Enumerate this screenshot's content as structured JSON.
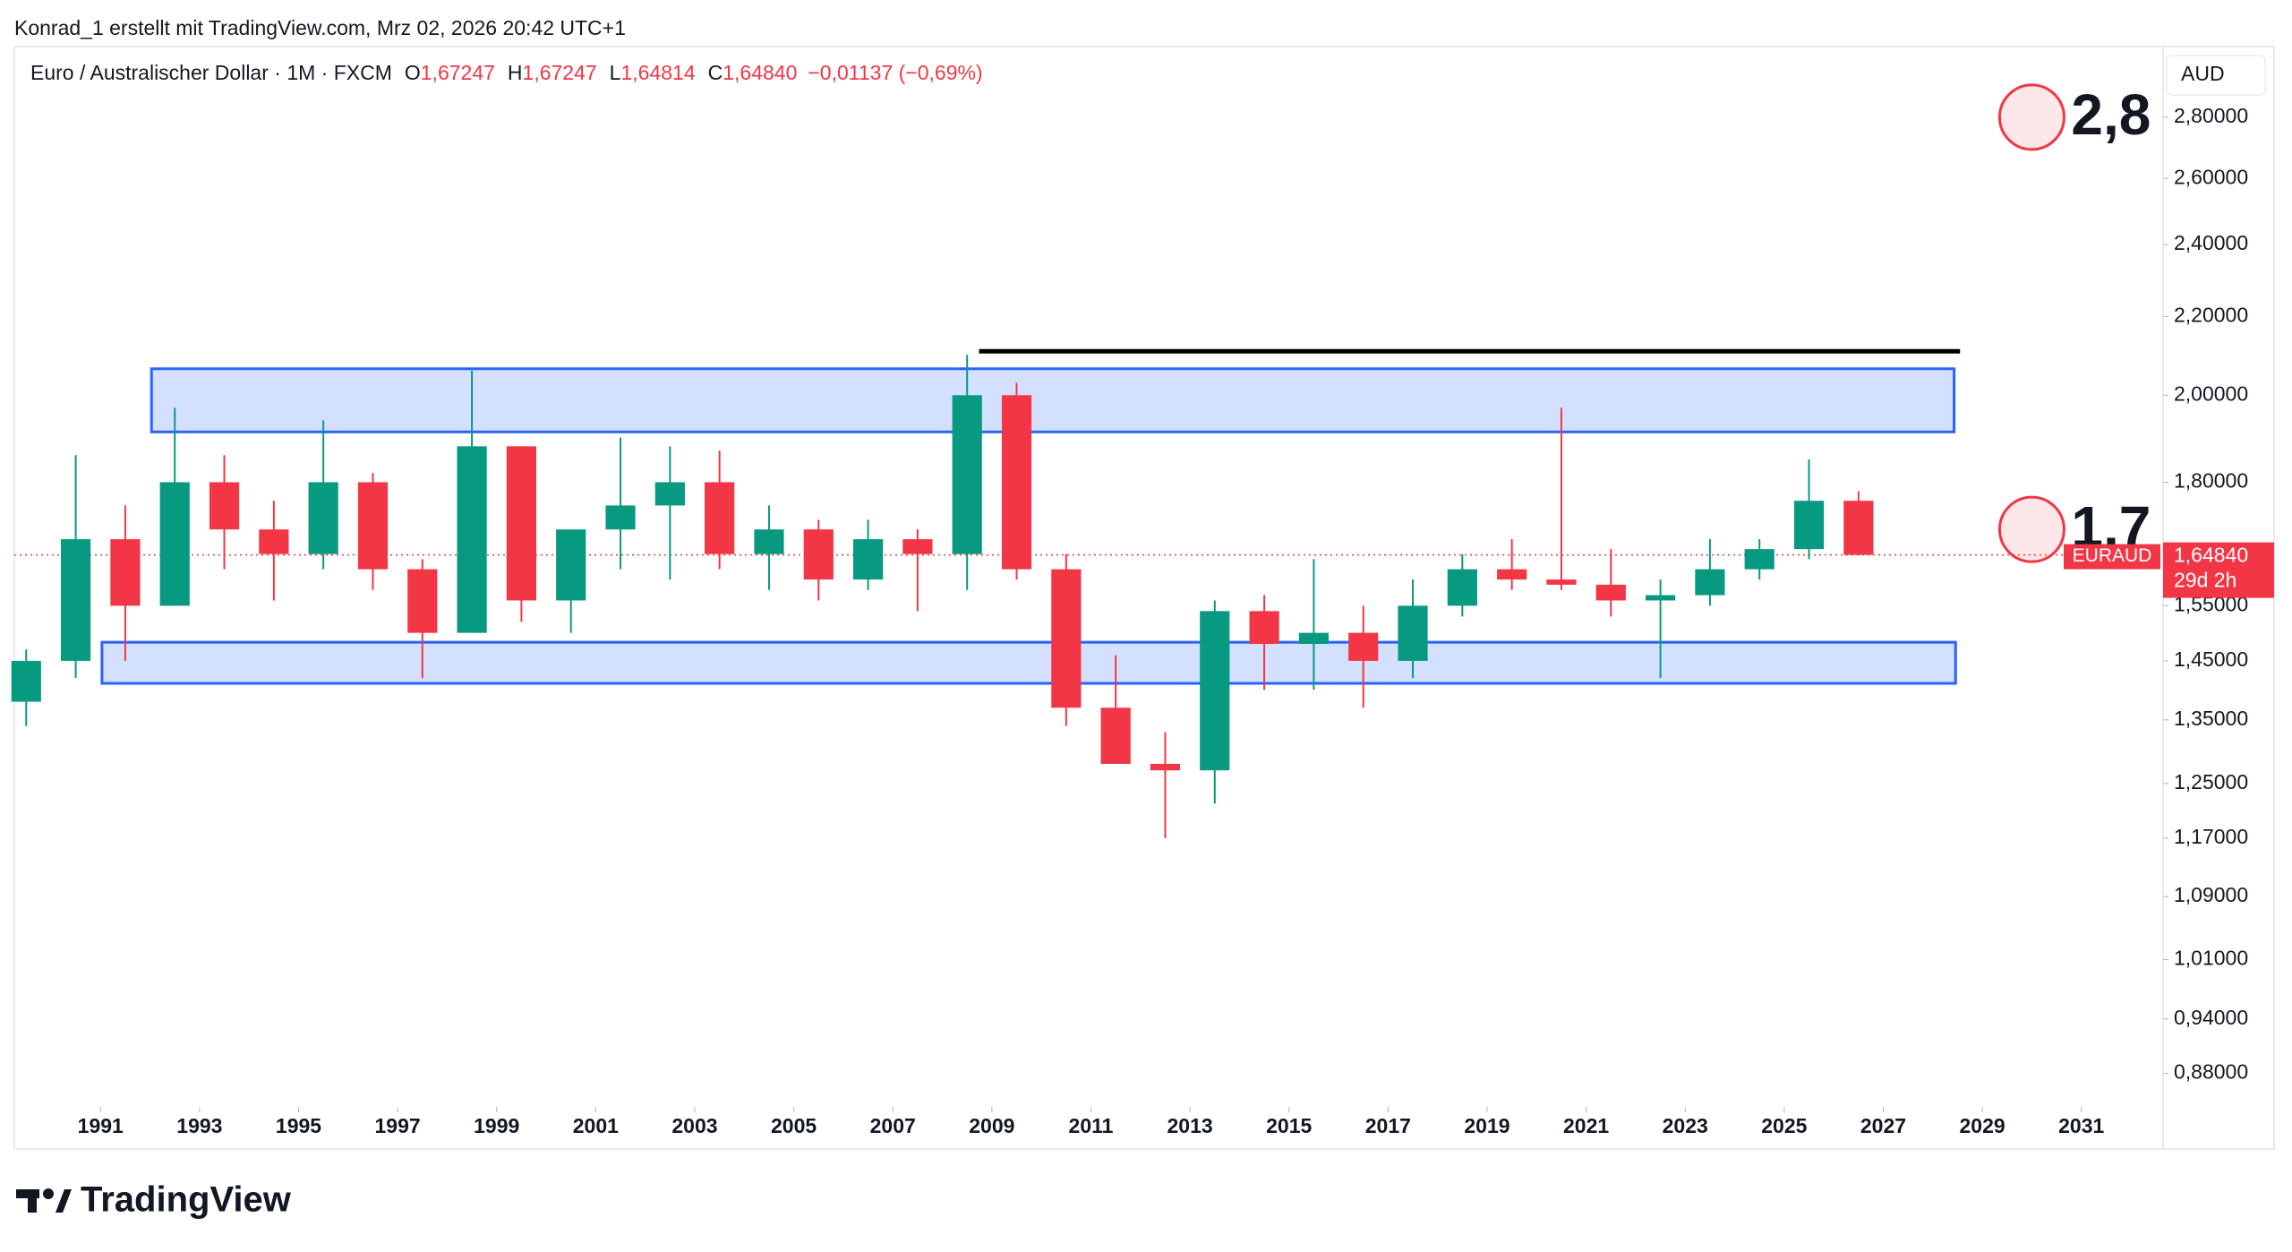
{
  "header": "Konrad_1 erstellt mit TradingView.com, Mrz 02, 2026 20:42 UTC+1",
  "brand": "TradingView",
  "chart_data": {
    "type": "candlestick",
    "legend": {
      "symbol": "Euro / Australischer Dollar · 1M · FXCM",
      "ohlc": [
        {
          "label": "O",
          "value": "1,67247"
        },
        {
          "label": "H",
          "value": "1,67247"
        },
        {
          "label": "L",
          "value": "1,64814"
        },
        {
          "label": "C",
          "value": "1,64840"
        }
      ],
      "change": "−0,01137 (−0,69%)"
    },
    "currency": "AUD",
    "log_scale": true,
    "up_color": "#089981",
    "down_color": "#f23645",
    "x": [
      1989,
      1990,
      1991,
      1992,
      1993,
      1994,
      1995,
      1996,
      1997,
      1998,
      1999,
      2000,
      2001,
      2002,
      2003,
      2004,
      2005,
      2006,
      2007,
      2008,
      2009,
      2010,
      2011,
      2012,
      2013,
      2014,
      2015,
      2016,
      2017,
      2018,
      2019,
      2020,
      2021,
      2022,
      2023,
      2024,
      2025,
      2026
    ],
    "open": [
      1.38,
      1.45,
      1.68,
      1.55,
      1.8,
      1.7,
      1.65,
      1.8,
      1.62,
      1.5,
      1.88,
      1.56,
      1.7,
      1.75,
      1.8,
      1.65,
      1.7,
      1.6,
      1.68,
      1.65,
      2.0,
      1.62,
      1.37,
      1.28,
      1.27,
      1.54,
      1.48,
      1.5,
      1.45,
      1.55,
      1.62,
      1.6,
      1.59,
      1.56,
      1.57,
      1.62,
      1.66,
      1.76
    ],
    "high": [
      1.47,
      1.86,
      1.75,
      1.97,
      1.86,
      1.76,
      1.94,
      1.82,
      1.64,
      2.06,
      1.88,
      1.68,
      1.9,
      1.88,
      1.87,
      1.75,
      1.72,
      1.72,
      1.7,
      2.1,
      2.03,
      1.65,
      1.46,
      1.33,
      1.56,
      1.57,
      1.64,
      1.55,
      1.6,
      1.65,
      1.68,
      1.97,
      1.66,
      1.6,
      1.68,
      1.68,
      1.85,
      1.78
    ],
    "low": [
      1.34,
      1.42,
      1.45,
      1.55,
      1.62,
      1.56,
      1.62,
      1.58,
      1.42,
      1.5,
      1.52,
      1.5,
      1.62,
      1.6,
      1.62,
      1.58,
      1.56,
      1.58,
      1.54,
      1.58,
      1.6,
      1.34,
      1.3,
      1.17,
      1.22,
      1.4,
      1.4,
      1.37,
      1.42,
      1.53,
      1.58,
      1.58,
      1.53,
      1.42,
      1.55,
      1.6,
      1.64,
      1.648
    ],
    "close": [
      1.45,
      1.68,
      1.55,
      1.8,
      1.7,
      1.65,
      1.8,
      1.62,
      1.5,
      1.88,
      1.56,
      1.7,
      1.75,
      1.8,
      1.65,
      1.7,
      1.6,
      1.68,
      1.65,
      2.0,
      1.62,
      1.37,
      1.28,
      1.27,
      1.54,
      1.48,
      1.5,
      1.45,
      1.55,
      1.62,
      1.6,
      1.59,
      1.56,
      1.57,
      1.62,
      1.66,
      1.76,
      1.6484
    ],
    "xlim": [
      1989.26,
      2032.65
    ],
    "xticks": [
      1991,
      1993,
      1995,
      1997,
      1999,
      2001,
      2003,
      2005,
      2007,
      2009,
      2011,
      2013,
      2015,
      2017,
      2019,
      2021,
      2023,
      2025,
      2027,
      2029,
      2031
    ],
    "ylim": [
      0.845,
      3.05
    ],
    "yticks": [
      {
        "value": 2.8,
        "label": "2,80000"
      },
      {
        "value": 2.6,
        "label": "2,60000"
      },
      {
        "value": 2.4,
        "label": "2,40000"
      },
      {
        "value": 2.2,
        "label": "2,20000"
      },
      {
        "value": 2.0,
        "label": "2,00000"
      },
      {
        "value": 1.8,
        "label": "1,80000"
      },
      {
        "value": 1.55,
        "label": "1,55000"
      },
      {
        "value": 1.45,
        "label": "1,45000"
      },
      {
        "value": 1.35,
        "label": "1,35000"
      },
      {
        "value": 1.25,
        "label": "1,25000"
      },
      {
        "value": 1.17,
        "label": "1,17000"
      },
      {
        "value": 1.09,
        "label": "1,09000"
      },
      {
        "value": 1.01,
        "label": "1,01000"
      },
      {
        "value": 0.94,
        "label": "0,94000"
      },
      {
        "value": 0.88,
        "label": "0,88000"
      }
    ],
    "last_price": {
      "value": 1.6484,
      "label": "1,64840",
      "countdown": "29d 2h",
      "ticker": "EURAUD"
    },
    "zones": [
      {
        "x0": 1992.03,
        "x1": 2028.43,
        "y0": 1.913,
        "y1": 2.065
      },
      {
        "x0": 1991.03,
        "x1": 2028.46,
        "y0": 1.411,
        "y1": 1.483
      }
    ],
    "hline": {
      "x0": 2008.74,
      "x1": 2028.55,
      "y": 2.109
    },
    "markers": [
      {
        "x": 2030,
        "value": 2.8,
        "label": "2,8"
      },
      {
        "x": 2030,
        "value": 1.7,
        "label": "1,7"
      }
    ]
  }
}
